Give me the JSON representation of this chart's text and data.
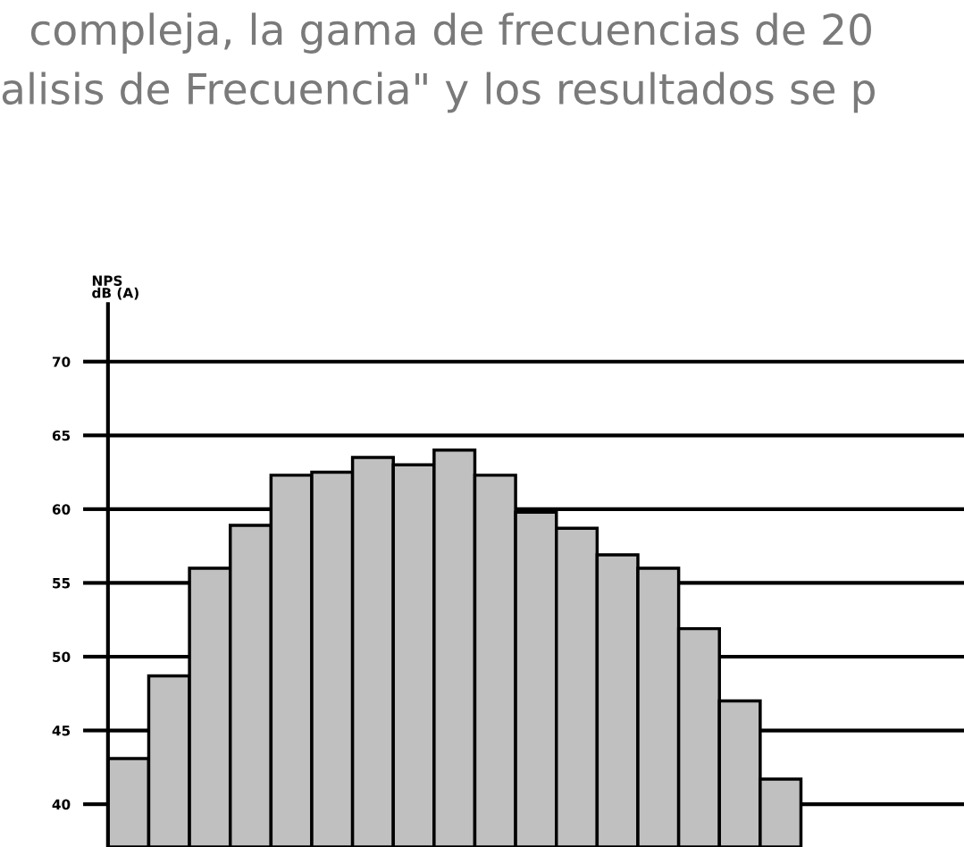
{
  "chart_data": {
    "type": "bar",
    "ylabel": "NPS\ndB (A)",
    "annotations": [
      "compleja, la gama de frecuencias de 20",
      "alisis de Frecuencia\" y los resultados se p"
    ],
    "categories": [
      null,
      null,
      null,
      null,
      null,
      null,
      null,
      null,
      null,
      null,
      null,
      null,
      null,
      null,
      null,
      null,
      null,
      null,
      null,
      null,
      null
    ],
    "values": [
      43.1,
      48.7,
      56.0,
      58.9,
      62.3,
      62.5,
      63.5,
      63.0,
      64.0,
      62.3,
      59.8,
      58.7,
      56.9,
      56.0,
      51.9,
      47.0,
      41.7,
      null,
      null,
      null,
      null
    ],
    "color": "#c0c0c0",
    "ylim": [
      37.1,
      73.9
    ],
    "yticks": [
      40,
      45,
      50,
      55,
      60,
      65,
      70
    ],
    "grid": "y",
    "tick_labels": "y"
  }
}
